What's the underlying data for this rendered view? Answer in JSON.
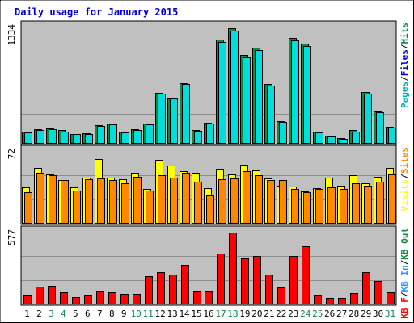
{
  "chart_title": "Daily usage for January 2015",
  "colors": {
    "page_bg": "#ffffff",
    "plot_bg": "#c0c0c0",
    "grid": "#8c8c8c",
    "title": "#0000cc",
    "pages": "#00aaaa",
    "files": "#0000cc",
    "hits": "#118844",
    "visits": "#ffff00",
    "sites": "#ff8800",
    "kb_in": "#3399ff",
    "kb_out": "#118844",
    "kb_f": "#ff0000",
    "weekday_label": "#000000",
    "weekend_label": "#118844"
  },
  "chart_data": [
    {
      "type": "bar",
      "panel": "top",
      "y_max_label": "1334",
      "ylim": [
        0,
        1334
      ],
      "grid": true,
      "right_labels": [
        "Pages",
        "Files",
        "Hits"
      ],
      "categories": [
        "1",
        "2",
        "3",
        "4",
        "5",
        "6",
        "7",
        "8",
        "9",
        "10",
        "11",
        "12",
        "13",
        "14",
        "15",
        "16",
        "17",
        "18",
        "19",
        "20",
        "21",
        "22",
        "23",
        "24",
        "25",
        "26",
        "27",
        "28",
        "29",
        "30",
        "31"
      ],
      "weekend_days": [
        "3",
        "4",
        "10",
        "11",
        "17",
        "18",
        "24",
        "25",
        "31"
      ],
      "series": [
        {
          "name": "Hits",
          "color": "#118844",
          "values": [
            135,
            160,
            170,
            145,
            105,
            115,
            205,
            225,
            135,
            155,
            225,
            580,
            525,
            690,
            150,
            230,
            1195,
            1323,
            1020,
            1100,
            685,
            255,
            1215,
            1145,
            130,
            85,
            60,
            145,
            590,
            365,
            185
          ]
        },
        {
          "name": "Files",
          "color": "#00dddd",
          "values": [
            125,
            150,
            155,
            135,
            100,
            105,
            195,
            215,
            125,
            145,
            210,
            570,
            520,
            680,
            140,
            220,
            1165,
            1293,
            985,
            1070,
            665,
            245,
            1185,
            1120,
            120,
            75,
            50,
            135,
            570,
            350,
            175
          ]
        }
      ]
    },
    {
      "type": "bar",
      "panel": "middle",
      "y_max_label": "72",
      "ylim": [
        0,
        72
      ],
      "grid": true,
      "right_labels": [
        "Visits",
        "Sites"
      ],
      "categories": [
        "1",
        "2",
        "3",
        "4",
        "5",
        "6",
        "7",
        "8",
        "9",
        "10",
        "11",
        "12",
        "13",
        "14",
        "15",
        "16",
        "17",
        "18",
        "19",
        "20",
        "21",
        "22",
        "23",
        "24",
        "25",
        "26",
        "27",
        "28",
        "29",
        "30",
        "31"
      ],
      "series": [
        {
          "name": "Visits",
          "color": "#ffff00",
          "values": [
            36,
            56,
            49,
            43,
            36,
            46,
            65,
            46,
            44,
            51,
            34,
            64,
            58,
            52,
            51,
            35,
            55,
            49,
            59,
            53,
            45,
            38,
            37,
            32,
            35,
            46,
            38,
            48,
            40,
            47,
            56
          ]
        },
        {
          "name": "Sites",
          "color": "#ff8800",
          "values": [
            31,
            51,
            48,
            43,
            33,
            44,
            45,
            43,
            40,
            47,
            33,
            48,
            46,
            51,
            42,
            28,
            44,
            45,
            52,
            48,
            43,
            43,
            34,
            31,
            34,
            36,
            34,
            40,
            38,
            42,
            49
          ]
        }
      ]
    },
    {
      "type": "bar",
      "panel": "bottom",
      "y_max_label": "577",
      "ylim": [
        0,
        577
      ],
      "grid": true,
      "right_labels": [
        "KB F",
        "KB In",
        "KB Out"
      ],
      "categories": [
        "1",
        "2",
        "3",
        "4",
        "5",
        "6",
        "7",
        "8",
        "9",
        "10",
        "11",
        "12",
        "13",
        "14",
        "15",
        "16",
        "17",
        "18",
        "19",
        "20",
        "21",
        "22",
        "23",
        "24",
        "25",
        "26",
        "27",
        "28",
        "29",
        "30",
        "31"
      ],
      "series": [
        {
          "name": "KB F",
          "color": "#ff0000",
          "values": [
            75,
            135,
            145,
            90,
            55,
            70,
            105,
            95,
            80,
            80,
            220,
            255,
            235,
            315,
            105,
            105,
            405,
            577,
            370,
            385,
            235,
            130,
            390,
            465,
            75,
            45,
            45,
            85,
            255,
            185,
            90
          ]
        }
      ]
    }
  ]
}
